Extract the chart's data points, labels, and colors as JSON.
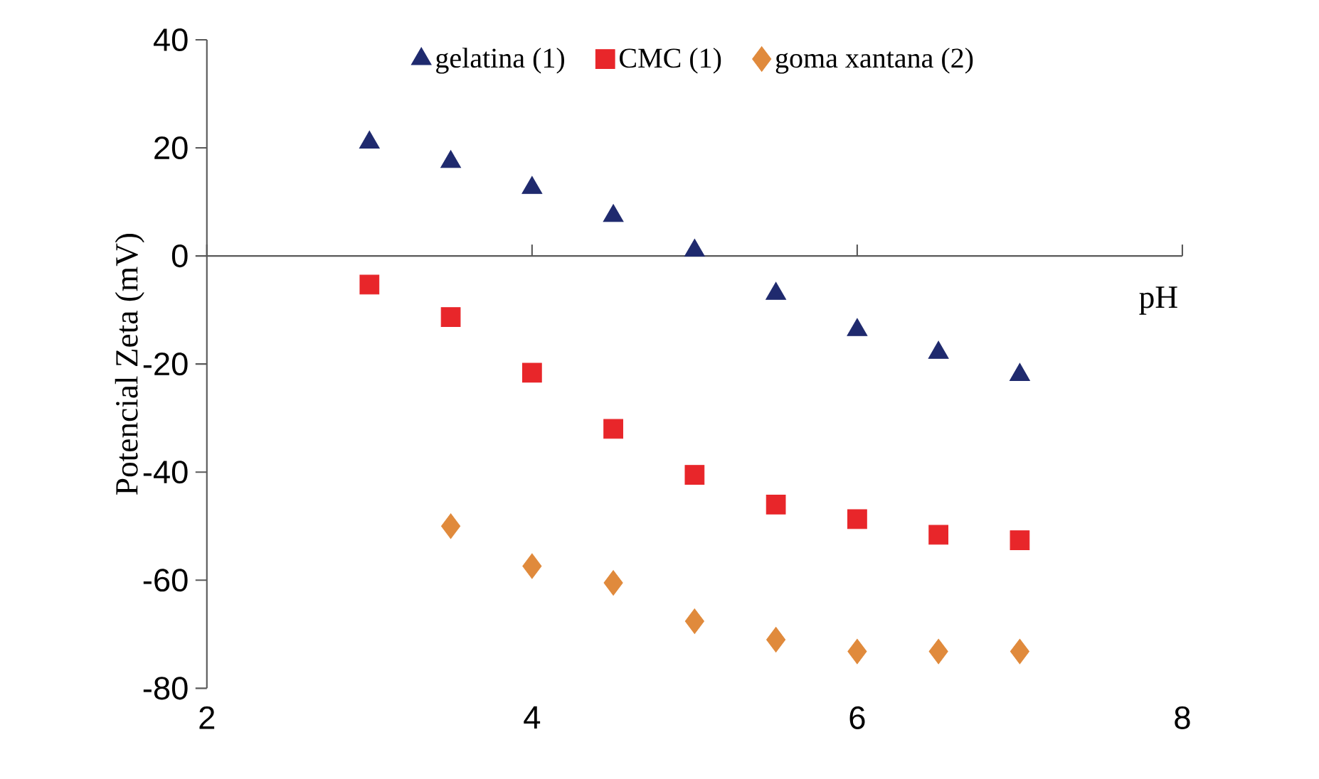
{
  "chart_data": {
    "type": "scatter",
    "xlabel": "pH",
    "ylabel": "Potencial Zeta (mV)",
    "x": [
      3,
      3.5,
      4,
      4.5,
      5,
      5.5,
      6,
      6.5,
      7
    ],
    "series": [
      {
        "name": "gelatina (1)",
        "color": "#1f2a6e",
        "marker": "triangle",
        "values": [
          21,
          17.4,
          12.6,
          7.4,
          1,
          -7,
          -13.7,
          -17.9,
          -22
        ]
      },
      {
        "name": "CMC (1)",
        "color": "#e8262a",
        "marker": "square",
        "values": [
          -5.3,
          -11.3,
          -21.6,
          -32,
          -40.5,
          -46,
          -48.7,
          -51.6,
          -52.6
        ]
      },
      {
        "name": "goma xantana (2)",
        "color": "#e08a3c",
        "marker": "diamond",
        "values": [
          null,
          -50,
          -57.4,
          -60.5,
          -67.6,
          -71,
          -73.2,
          -73.2,
          -73.2
        ]
      }
    ],
    "xlim": [
      2,
      8
    ],
    "ylim": [
      -80,
      40
    ],
    "xticks": [
      2,
      4,
      6,
      8
    ],
    "yticks": [
      -80,
      -60,
      -40,
      -20,
      0,
      20,
      40
    ],
    "ref_lines": [
      {
        "axis": "y",
        "value": 0
      }
    ],
    "legend": "top",
    "grid": false
  }
}
